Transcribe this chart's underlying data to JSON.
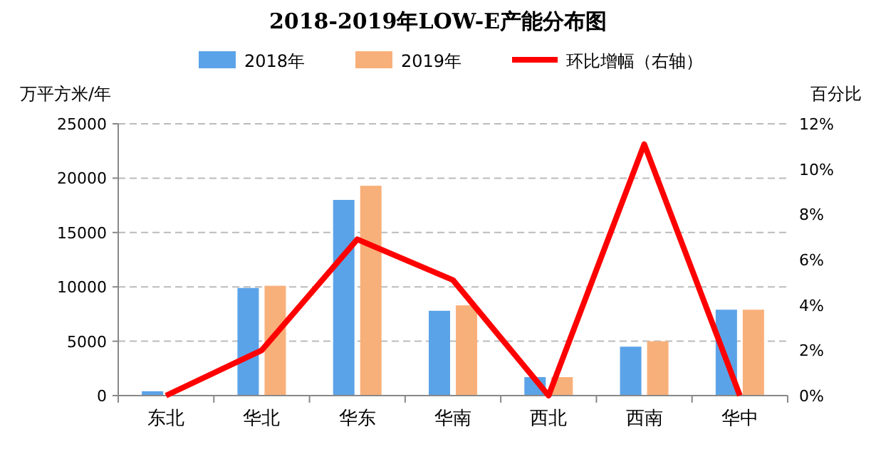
{
  "chart_data": {
    "type": "bar",
    "title": "2018-2019年LOW-E产能分布图",
    "ylabel": "万平方米/年",
    "y2label": "百分比",
    "categories": [
      "东北",
      "华北",
      "华东",
      "华南",
      "西北",
      "西南",
      "华中"
    ],
    "series": [
      {
        "name": "2018年",
        "color": "#5ba3e8",
        "values": [
          400,
          9900,
          18000,
          7800,
          1700,
          4500,
          7900
        ]
      },
      {
        "name": "2019年",
        "color": "#f8b07a",
        "values": [
          0,
          10100,
          19300,
          8300,
          1700,
          5000,
          7900
        ]
      },
      {
        "name": "环比增幅（右轴）",
        "type": "line",
        "axis": "y2",
        "color": "#ff0000",
        "values": [
          0,
          2.0,
          6.9,
          5.1,
          0,
          11.1,
          0
        ]
      }
    ],
    "ylim": [
      0,
      25000
    ],
    "yticks": [
      0,
      5000,
      10000,
      15000,
      20000,
      25000
    ],
    "y2lim": [
      0,
      12
    ],
    "y2ticks": [
      {
        "value": 0,
        "label": "0%"
      },
      {
        "value": 2,
        "label": "2%"
      },
      {
        "value": 4,
        "label": "4%"
      },
      {
        "value": 6,
        "label": "6%"
      },
      {
        "value": 8,
        "label": "8%"
      },
      {
        "value": 10,
        "label": "10%"
      },
      {
        "value": 12,
        "label": "12%"
      }
    ],
    "grid": "y",
    "legend": "top",
    "marker": "none",
    "line_style": "solid"
  }
}
